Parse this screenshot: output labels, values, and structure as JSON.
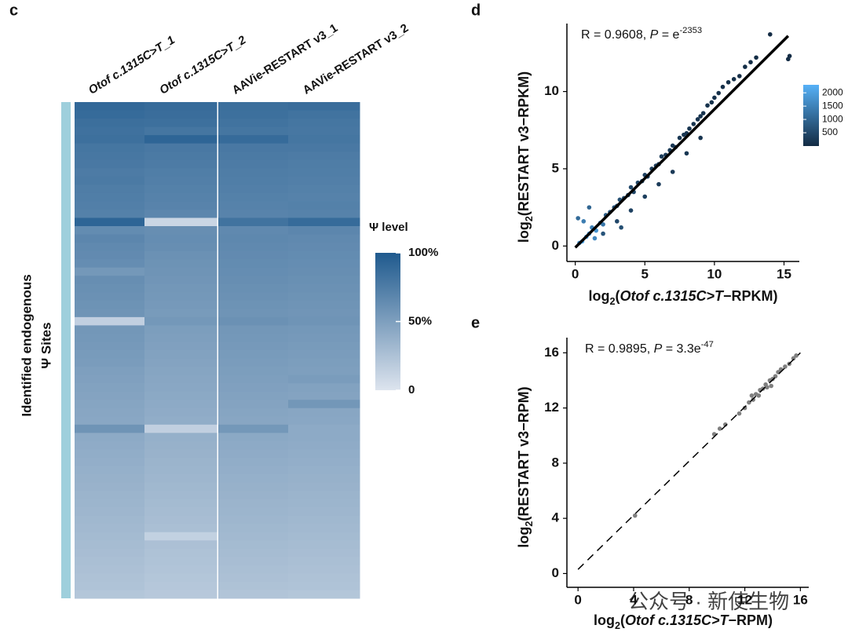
{
  "chart_data": [
    {
      "type": "heatmap",
      "panel": "c",
      "categories": [
        "Otof c.1315C>T_1",
        "Otof c.1315C>T_2",
        "AAVie-RESTART v3_1",
        "AAVie-RESTART v3_2"
      ],
      "category_italic": [
        true,
        true,
        false,
        false
      ],
      "y_label": [
        "Identified endogenous",
        "Ψ Sites"
      ],
      "values": [
        [
          90,
          88,
          85,
          86
        ],
        [
          88,
          86,
          84,
          82
        ],
        [
          85,
          84,
          82,
          80
        ],
        [
          83,
          80,
          80,
          79
        ],
        [
          84,
          92,
          88,
          80
        ],
        [
          80,
          78,
          78,
          78
        ],
        [
          79,
          77,
          77,
          76
        ],
        [
          78,
          76,
          76,
          75
        ],
        [
          76,
          74,
          75,
          74
        ],
        [
          77,
          73,
          74,
          73
        ],
        [
          75,
          72,
          73,
          72
        ],
        [
          74,
          71,
          72,
          71
        ],
        [
          73,
          70,
          71,
          72
        ],
        [
          72,
          68,
          70,
          71
        ],
        [
          92,
          10,
          82,
          88
        ],
        [
          64,
          62,
          66,
          68
        ],
        [
          68,
          63,
          67,
          66
        ],
        [
          66,
          62,
          66,
          65
        ],
        [
          65,
          60,
          65,
          64
        ],
        [
          63,
          59,
          64,
          63
        ],
        [
          55,
          58,
          63,
          62
        ],
        [
          62,
          57,
          62,
          61
        ],
        [
          61,
          56,
          61,
          60
        ],
        [
          60,
          55,
          60,
          59
        ],
        [
          59,
          54,
          59,
          58
        ],
        [
          58,
          53,
          58,
          57
        ],
        [
          15,
          55,
          60,
          58
        ],
        [
          56,
          51,
          56,
          55
        ],
        [
          55,
          50,
          55,
          54
        ],
        [
          54,
          49,
          54,
          53
        ],
        [
          53,
          48,
          53,
          52
        ],
        [
          52,
          47,
          52,
          51
        ],
        [
          50,
          46,
          51,
          50
        ],
        [
          49,
          45,
          50,
          52
        ],
        [
          48,
          44,
          49,
          48
        ],
        [
          47,
          43,
          48,
          47
        ],
        [
          46,
          42,
          47,
          56
        ],
        [
          45,
          41,
          46,
          45
        ],
        [
          44,
          40,
          45,
          44
        ],
        [
          58,
          15,
          55,
          42
        ],
        [
          42,
          38,
          43,
          42
        ],
        [
          41,
          37,
          42,
          41
        ],
        [
          40,
          36,
          41,
          40
        ],
        [
          39,
          35,
          40,
          39
        ],
        [
          38,
          34,
          39,
          38
        ],
        [
          37,
          33,
          38,
          37
        ],
        [
          36,
          32,
          37,
          36
        ],
        [
          35,
          31,
          36,
          35
        ],
        [
          34,
          30,
          35,
          34
        ],
        [
          33,
          29,
          34,
          33
        ],
        [
          32,
          28,
          33,
          32
        ],
        [
          31,
          27,
          32,
          31
        ],
        [
          30,
          14,
          31,
          30
        ],
        [
          29,
          26,
          30,
          29
        ],
        [
          28,
          25,
          29,
          28
        ],
        [
          27,
          24,
          28,
          27
        ],
        [
          26,
          23,
          27,
          26
        ],
        [
          25,
          22,
          26,
          25
        ],
        [
          24,
          21,
          25,
          24
        ],
        [
          22,
          20,
          23,
          22
        ]
      ],
      "colorbar": {
        "title": "Ψ level",
        "lim": [
          0,
          100
        ],
        "ticks": [
          0,
          {
            "value": 50,
            "label": "50%"
          },
          {
            "value": 100,
            "label": "100%"
          }
        ],
        "colors": [
          "#dde4ee",
          "#1f5a8e"
        ]
      }
    },
    {
      "type": "scatter",
      "panel": "d",
      "annotation": [
        {
          "text": "R = 0.9608, "
        },
        {
          "text": "P",
          "italic": true
        },
        {
          "text": " = e"
        },
        {
          "text": "-2353",
          "sup": true
        }
      ],
      "x_label": [
        {
          "text": "log"
        },
        {
          "text": "2",
          "sub": true
        },
        {
          "text": "("
        },
        {
          "text": "Otof c.1315C>T",
          "italic": true
        },
        {
          "text": "−RPKM)"
        }
      ],
      "y_label": [
        {
          "text": "log"
        },
        {
          "text": "2",
          "sub": true
        },
        {
          "text": "(RESTART v3−RPKM)"
        }
      ],
      "x": [
        0.5,
        0.8,
        1,
        1.2,
        1.5,
        0.3,
        1.8,
        2,
        2.2,
        0.6,
        1.4,
        2.5,
        2.8,
        3,
        3.2,
        3.5,
        3.8,
        4,
        4.2,
        4.5,
        4.8,
        5,
        5.2,
        5.5,
        5.8,
        6,
        6.2,
        6.5,
        6.8,
        7,
        7.2,
        7.5,
        7.8,
        8,
        8.2,
        8.5,
        8.8,
        9,
        9.2,
        9.5,
        9.8,
        10,
        10.3,
        10.6,
        11,
        11.4,
        11.8,
        12.2,
        12.6,
        13,
        14,
        15.3,
        15.4,
        2,
        3,
        4,
        5,
        6,
        7,
        8,
        9,
        3.3,
        1,
        0.2
      ],
      "y": [
        0.3,
        0.6,
        0.8,
        1.2,
        1,
        0.2,
        1.5,
        1.4,
        2,
        1.6,
        0.5,
        2.2,
        2.5,
        2.6,
        3,
        3.1,
        3.3,
        3.8,
        3.5,
        4.1,
        4.2,
        4.6,
        4.5,
        5,
        5.2,
        5.3,
        5.8,
        5.9,
        6.2,
        6.5,
        6.4,
        7,
        7.2,
        7.3,
        7.6,
        7.9,
        8.2,
        8.4,
        8.6,
        9.1,
        9.3,
        9.6,
        9.9,
        10.3,
        10.6,
        10.8,
        11,
        11.6,
        11.9,
        12.2,
        13.7,
        12.1,
        12.3,
        0.8,
        1.6,
        2.3,
        3.2,
        4,
        4.8,
        6,
        7,
        1.2,
        2.5,
        1.8
      ],
      "density": [
        2100,
        2000,
        1900,
        1500,
        1800,
        1700,
        1200,
        1300,
        900,
        1400,
        1600,
        800,
        700,
        650,
        600,
        550,
        500,
        480,
        460,
        440,
        420,
        400,
        380,
        350,
        330,
        310,
        290,
        270,
        250,
        230,
        220,
        210,
        200,
        190,
        180,
        170,
        160,
        150,
        140,
        130,
        120,
        110,
        100,
        90,
        80,
        70,
        60,
        50,
        40,
        30,
        20,
        20,
        20,
        700,
        500,
        400,
        350,
        300,
        250,
        200,
        150,
        600,
        1000,
        1100
      ],
      "xlim": [
        -0.6,
        16.1
      ],
      "ylim": [
        -1,
        14.4
      ],
      "xticks": [
        0,
        5,
        10,
        15
      ],
      "yticks": [
        0,
        5,
        10
      ],
      "fit": {
        "x": [
          0,
          15.3
        ],
        "y": [
          -0.1,
          13.6
        ],
        "color": "#000000",
        "dashed": false
      },
      "colorbar": {
        "lim": [
          0,
          2300
        ],
        "ticks": [
          500,
          1000,
          1500,
          2000
        ],
        "colors": [
          "#132b43",
          "#56b1f7"
        ]
      }
    },
    {
      "type": "scatter",
      "panel": "e",
      "annotation": [
        {
          "text": "R = 0.9895, "
        },
        {
          "text": "P",
          "italic": true
        },
        {
          "text": " = 3.3e"
        },
        {
          "text": "-47",
          "sup": true
        }
      ],
      "x_label": [
        {
          "text": "log"
        },
        {
          "text": "2",
          "sub": true
        },
        {
          "text": "("
        },
        {
          "text": "Otof c.1315C>T",
          "italic": true
        },
        {
          "text": "−RPM)"
        }
      ],
      "y_label": [
        {
          "text": "log"
        },
        {
          "text": "2",
          "sub": true
        },
        {
          "text": "(RESTART v3−RPM)"
        }
      ],
      "x": [
        4.1,
        9.8,
        10.2,
        10.6,
        11.6,
        12,
        12.3,
        12.6,
        12.8,
        13,
        13.1,
        13.3,
        13.5,
        13.6,
        13.8,
        14,
        14.2,
        14.4,
        14.6,
        14.9,
        15.2,
        15.5,
        15.7,
        12.5,
        13.9
      ],
      "y": [
        4.2,
        10.1,
        10.5,
        10.8,
        11.6,
        12,
        12.4,
        12.6,
        13,
        12.9,
        13.3,
        13.4,
        13.7,
        13.5,
        14,
        14.1,
        14.3,
        14.6,
        14.8,
        15,
        15.2,
        15.6,
        15.8,
        12.9,
        13.6
      ],
      "color": "#808080",
      "xlim": [
        -0.8,
        16.6
      ],
      "ylim": [
        -1,
        17.1
      ],
      "xticks": [
        0,
        4,
        8,
        12,
        16
      ],
      "yticks": [
        0,
        4,
        8,
        12,
        16
      ],
      "fit": {
        "x": [
          0,
          16
        ],
        "y": [
          0.3,
          16
        ],
        "color": "#000000",
        "dashed": true
      },
      "watermark": "公众号 · 新使生物"
    }
  ]
}
